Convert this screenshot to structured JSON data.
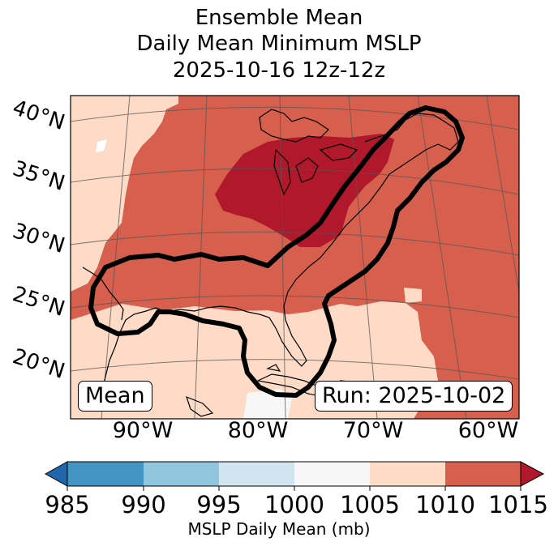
{
  "title": {
    "line1": "Ensemble Mean",
    "line2": "Daily Mean Minimum MSLP",
    "line3": "2025-10-16 12z-12z"
  },
  "map": {
    "lat_labels": [
      "40°N",
      "35°N",
      "30°N",
      "25°N",
      "20°N"
    ],
    "lon_labels": [
      "90°W",
      "80°W",
      "70°W",
      "60°W"
    ],
    "mean_label": "Mean",
    "run_label": "Run: 2025-10-02",
    "colors": {
      "c1005": "#fddbc7",
      "c1010": "#d6604d",
      "c1015": "#b2182b",
      "c1000": "#f7f7f7"
    }
  },
  "colorbar": {
    "ticks": [
      "985",
      "990",
      "995",
      "1000",
      "1005",
      "1010",
      "1015"
    ],
    "label": "MSLP Daily Mean (mb)",
    "colors": [
      "#2166ac",
      "#4393c3",
      "#92c5de",
      "#d1e5f0",
      "#f7f7f7",
      "#fddbc7",
      "#d6604d",
      "#b2182b"
    ]
  }
}
